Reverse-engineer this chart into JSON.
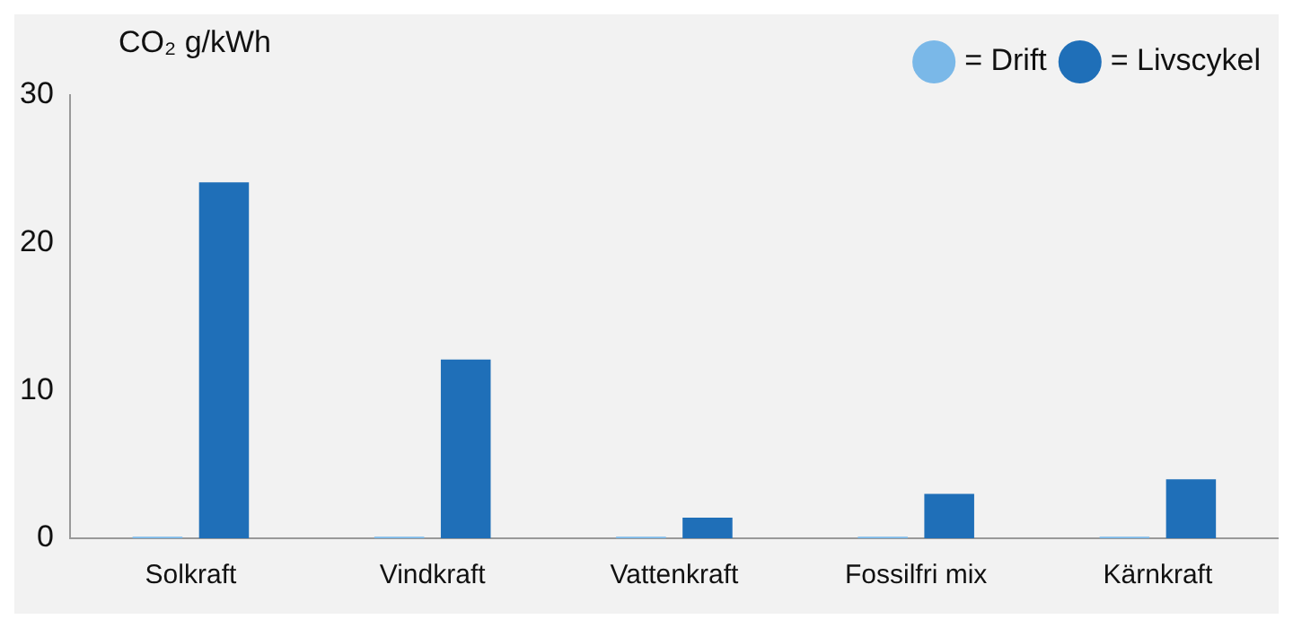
{
  "chart_data": {
    "type": "bar",
    "ylabel": "CO₂ g/kWh",
    "categories": [
      "Solkraft",
      "Vindkraft",
      "Vattenkraft",
      "Fossilfri mix",
      "Kärnkraft"
    ],
    "series": [
      {
        "name": "= Drift",
        "color": "#7ab8e8",
        "values": [
          0.1,
          0.1,
          0.1,
          0.1,
          0.1
        ]
      },
      {
        "name": "= Livscykel",
        "color": "#1f6fb8",
        "values": [
          24.1,
          12.1,
          1.4,
          3,
          4
        ]
      }
    ],
    "ylim": [
      0,
      30
    ],
    "yticks": [
      0,
      10,
      20,
      30
    ],
    "grid": false,
    "legend": "top right"
  }
}
